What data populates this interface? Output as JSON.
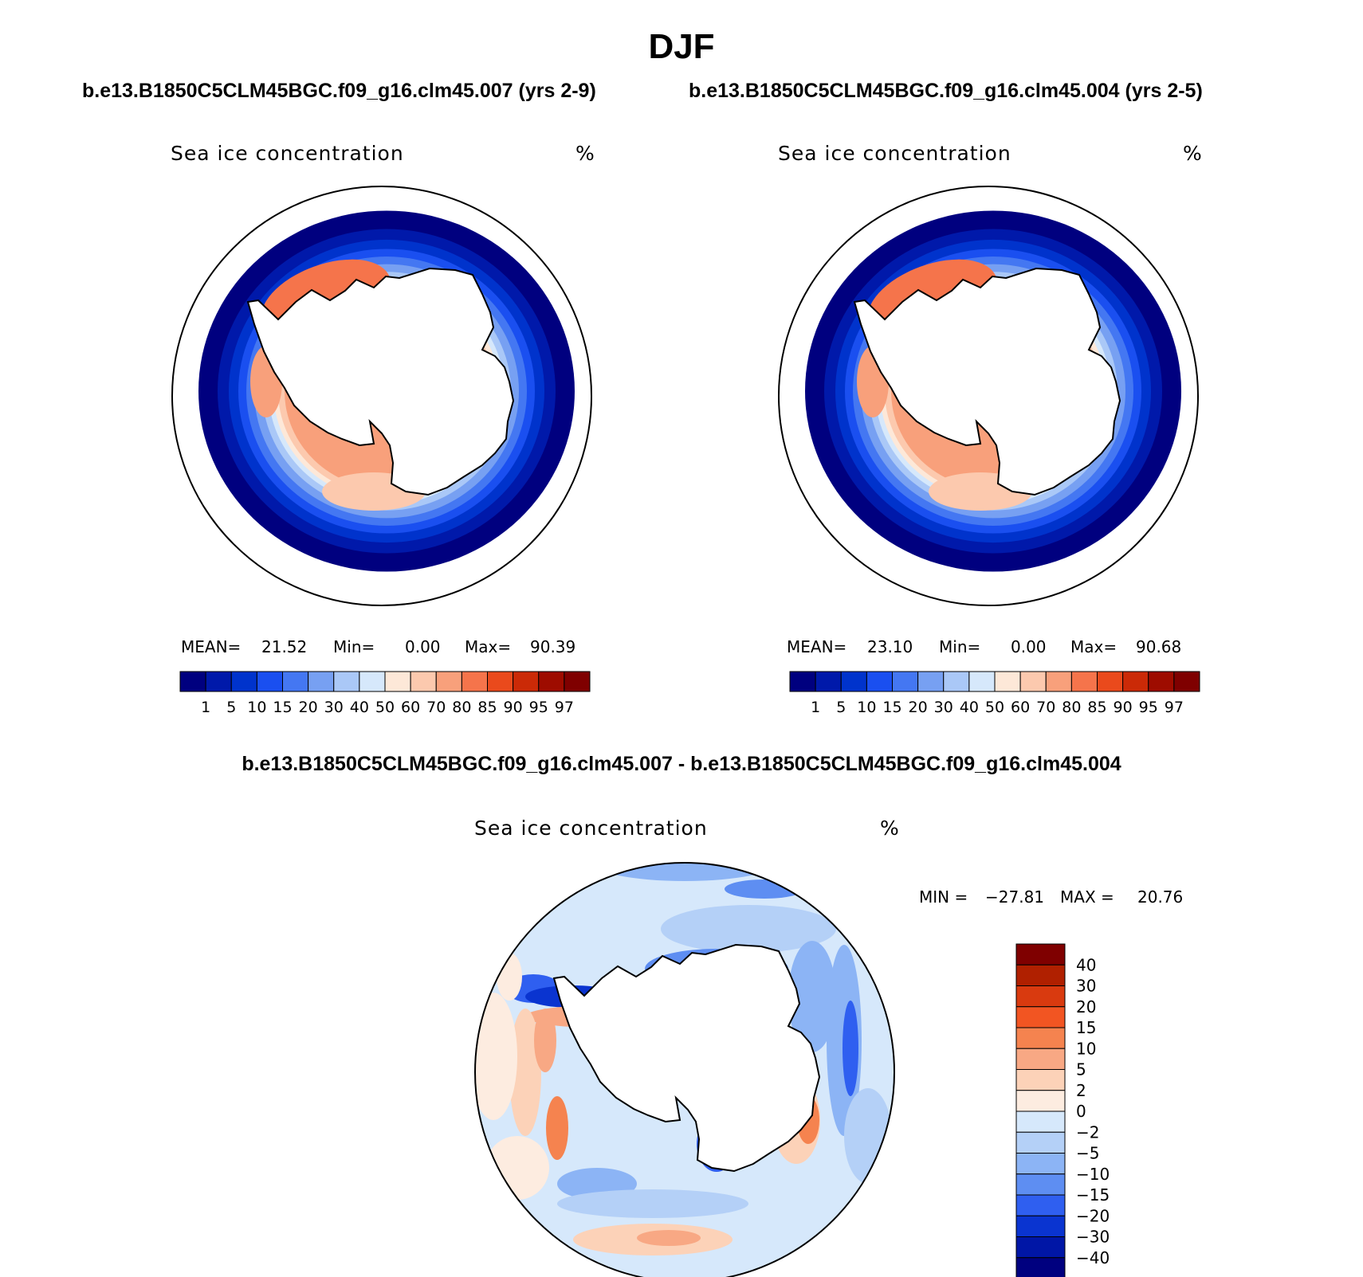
{
  "figure": {
    "title": "DJF",
    "case_a_title": "b.e13.B1850C5CLM45BGC.f09_g16.clm45.007 (yrs 2-9)",
    "case_b_title": "b.e13.B1850C5CLM45BGC.f09_g16.clm45.004 (yrs 2-5)",
    "diff_title": "b.e13.B1850C5CLM45BGC.f09_g16.clm45.007 - b.e13.B1850C5CLM45BGC.f09_g16.clm45.004"
  },
  "chart_data": [
    {
      "type": "heatmap",
      "projection": "south-polar-stereographic",
      "variable": "Sea ice concentration",
      "units": "%",
      "stats": {
        "mean_label": "MEAN=",
        "mean": "21.52",
        "min_label": "Min=",
        "min": "0.00",
        "max_label": "Max=",
        "max": "90.39"
      },
      "colorbar_levels": [
        "1",
        "5",
        "10",
        "15",
        "20",
        "30",
        "40",
        "50",
        "60",
        "70",
        "80",
        "85",
        "90",
        "95",
        "97"
      ],
      "colorbar_colors": [
        "#00007f",
        "#0019aa",
        "#0033cc",
        "#1a4ff0",
        "#4477f2",
        "#77a0f2",
        "#aac8f7",
        "#d6e8fb",
        "#fde8d8",
        "#fcc9ae",
        "#f8a07b",
        "#f5744b",
        "#ea4a1c",
        "#cb2a07",
        "#9e0c00",
        "#7f0000"
      ]
    },
    {
      "type": "heatmap",
      "projection": "south-polar-stereographic",
      "variable": "Sea ice concentration",
      "units": "%",
      "stats": {
        "mean_label": "MEAN=",
        "mean": "23.10",
        "min_label": "Min=",
        "min": "0.00",
        "max_label": "Max=",
        "max": "90.68"
      },
      "colorbar_levels": [
        "1",
        "5",
        "10",
        "15",
        "20",
        "30",
        "40",
        "50",
        "60",
        "70",
        "80",
        "85",
        "90",
        "95",
        "97"
      ],
      "colorbar_colors": [
        "#00007f",
        "#0019aa",
        "#0033cc",
        "#1a4ff0",
        "#4477f2",
        "#77a0f2",
        "#aac8f7",
        "#d6e8fb",
        "#fde8d8",
        "#fcc9ae",
        "#f8a07b",
        "#f5744b",
        "#ea4a1c",
        "#cb2a07",
        "#9e0c00",
        "#7f0000"
      ]
    },
    {
      "type": "heatmap",
      "projection": "south-polar-stereographic",
      "variable": "Sea ice concentration",
      "units": "%",
      "stats": {
        "min_label": "MIN =",
        "min": "−27.81",
        "max_label": "MAX =",
        "max": "20.76"
      },
      "colorbar_levels": [
        "40",
        "30",
        "20",
        "15",
        "10",
        "5",
        "2",
        "0",
        "−2",
        "−5",
        "−10",
        "−15",
        "−20",
        "−30",
        "−40"
      ],
      "colorbar_colors": [
        "#7f0000",
        "#b02000",
        "#d93a0f",
        "#f25522",
        "#f5834f",
        "#f8a884",
        "#fcd2b8",
        "#fdece0",
        "#d6e8fb",
        "#b4d0f7",
        "#8cb4f5",
        "#5e8ef2",
        "#2f5ff0",
        "#0a34d0",
        "#0016a6",
        "#00007f"
      ]
    }
  ]
}
